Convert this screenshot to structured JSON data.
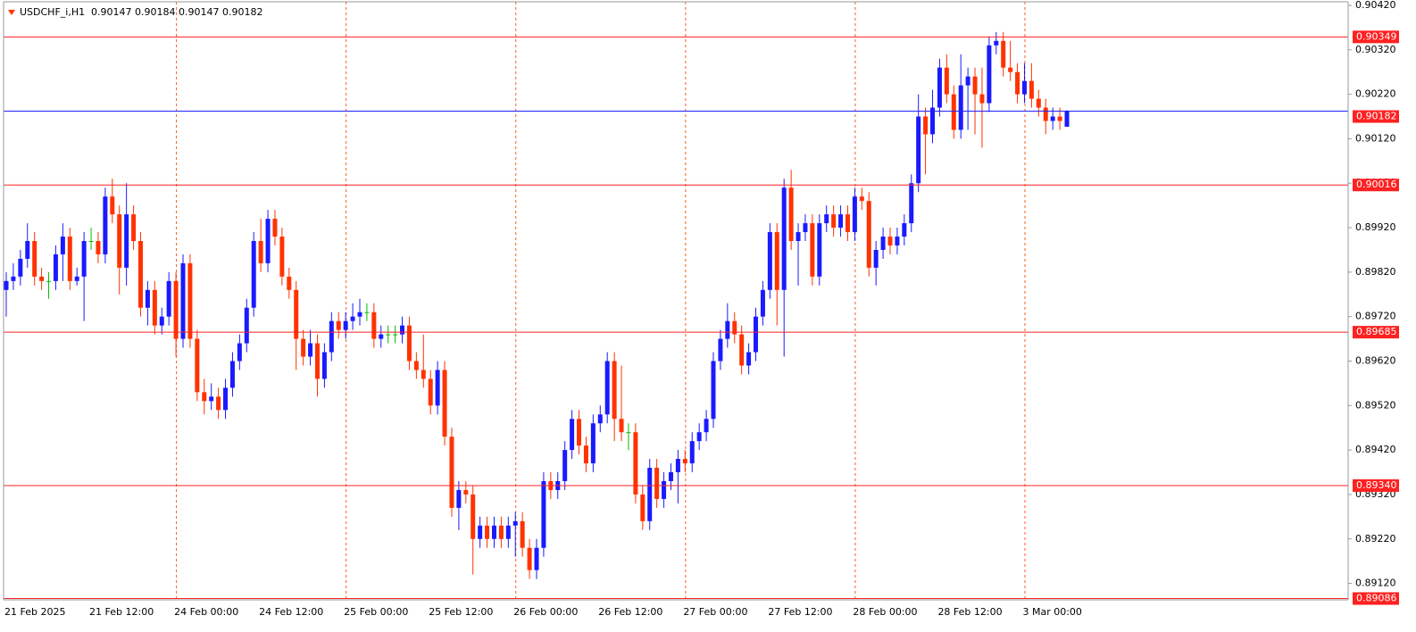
{
  "chart_data": {
    "type": "candlestick",
    "title": "USDCHF_i,H1",
    "categories": [
      "21 Feb 2025",
      null,
      null,
      null,
      null,
      null,
      null,
      null,
      null,
      null,
      null,
      null,
      "21 Feb 12:00",
      null,
      null,
      null,
      null,
      null,
      null,
      null,
      null,
      null,
      null,
      null,
      "24 Feb 00:00",
      null,
      null,
      null,
      null,
      null,
      null,
      null,
      null,
      null,
      null,
      null,
      "24 Feb 12:00",
      null,
      null,
      null,
      null,
      null,
      null,
      null,
      null,
      null,
      null,
      null,
      "25 Feb 00:00",
      null,
      null,
      null,
      null,
      null,
      null,
      null,
      null,
      null,
      null,
      null,
      "25 Feb 12:00",
      null,
      null,
      null,
      null,
      null,
      null,
      null,
      null,
      null,
      null,
      null,
      "26 Feb 00:00",
      null,
      null,
      null,
      null,
      null,
      null,
      null,
      null,
      null,
      null,
      null,
      "26 Feb 12:00",
      null,
      null,
      null,
      null,
      null,
      null,
      null,
      null,
      null,
      null,
      null,
      "27 Feb 00:00",
      null,
      null,
      null,
      null,
      null,
      null,
      null,
      null,
      null,
      null,
      null,
      "27 Feb 12:00",
      null,
      null,
      null,
      null,
      null,
      null,
      null,
      null,
      null,
      null,
      null,
      "28 Feb 00:00",
      null,
      null,
      null,
      null,
      null,
      null,
      null,
      null,
      null,
      null,
      null,
      "28 Feb 12:00",
      null,
      null,
      null,
      null,
      null,
      null,
      null,
      null,
      null,
      null,
      null,
      "3 Mar 00:00",
      null,
      null,
      null,
      null,
      null,
      null
    ],
    "open": [
      0.8978,
      0.898,
      0.8981,
      0.8985,
      0.8989,
      0.8981,
      0.898,
      0.898,
      0.8986,
      0.899,
      0.898,
      0.8981,
      0.8989,
      0.8989,
      0.8986,
      0.8999,
      0.8995,
      0.8983,
      0.8995,
      0.8989,
      0.8974,
      0.8978,
      0.897,
      0.8972,
      0.898,
      0.8967,
      0.8984,
      0.8967,
      0.8955,
      0.8953,
      0.8954,
      0.8951,
      0.8956,
      0.8962,
      0.8966,
      0.8974,
      0.8989,
      0.8984,
      0.8994,
      0.899,
      0.8981,
      0.8978,
      0.8967,
      0.8963,
      0.8966,
      0.8958,
      0.8964,
      0.8971,
      0.8969,
      0.8971,
      0.8972,
      0.8973,
      0.8973,
      0.8967,
      0.8968,
      0.8968,
      0.8968,
      0.897,
      0.8962,
      0.896,
      0.8958,
      0.8952,
      0.896,
      0.8945,
      0.8929,
      0.8933,
      0.8932,
      0.8922,
      0.8925,
      0.8922,
      0.8925,
      0.8922,
      0.8925,
      0.8926,
      0.892,
      0.8915,
      0.892,
      0.8935,
      0.8933,
      0.8935,
      0.8942,
      0.8949,
      0.8943,
      0.8939,
      0.8948,
      0.895,
      0.8962,
      0.8949,
      0.8946,
      0.8946,
      0.8932,
      0.8926,
      0.8938,
      0.8931,
      0.8935,
      0.8937,
      0.894,
      0.8939,
      0.8944,
      0.8946,
      0.8949,
      0.8962,
      0.8967,
      0.8971,
      0.8968,
      0.8961,
      0.8964,
      0.8972,
      0.8978,
      0.8991,
      0.8978,
      0.9001,
      0.8989,
      0.8991,
      0.8993,
      0.8981,
      0.8993,
      0.8995,
      0.8992,
      0.8995,
      0.8991,
      0.8999,
      0.8998,
      0.8983,
      0.8987,
      0.899,
      0.8988,
      0.899,
      0.8993,
      0.9002,
      0.9017,
      0.9013,
      0.9019,
      0.9028,
      0.9022,
      0.9014,
      0.9024,
      0.9026,
      0.9022,
      0.902,
      0.9033,
      0.9034,
      0.9028,
      0.9027,
      0.9022,
      0.9025,
      0.9021,
      0.9019,
      0.9016,
      0.9017,
      0.90147
    ],
    "high": [
      0.8982,
      0.8984,
      0.8987,
      0.8993,
      0.8991,
      0.8983,
      0.8982,
      0.8988,
      0.8993,
      0.8992,
      0.8983,
      0.8991,
      0.8992,
      0.8991,
      0.9001,
      0.9003,
      0.8997,
      0.9002,
      0.8997,
      0.8991,
      0.898,
      0.898,
      0.8974,
      0.8982,
      0.8982,
      0.8986,
      0.8986,
      0.8969,
      0.8958,
      0.8957,
      0.8956,
      0.8958,
      0.8964,
      0.8968,
      0.8976,
      0.8991,
      0.8994,
      0.8996,
      0.8996,
      0.8992,
      0.8983,
      0.898,
      0.8969,
      0.8969,
      0.8968,
      0.8966,
      0.8973,
      0.8973,
      0.8973,
      0.8975,
      0.8976,
      0.8975,
      0.8975,
      0.897,
      0.897,
      0.897,
      0.8972,
      0.8972,
      0.8964,
      0.8968,
      0.896,
      0.8962,
      0.8962,
      0.8947,
      0.8935,
      0.8935,
      0.8934,
      0.8927,
      0.8927,
      0.8927,
      0.8927,
      0.8927,
      0.8928,
      0.8928,
      0.8922,
      0.8922,
      0.8937,
      0.8937,
      0.8937,
      0.8944,
      0.8951,
      0.8951,
      0.8945,
      0.895,
      0.8952,
      0.8964,
      0.8964,
      0.8961,
      0.8948,
      0.8948,
      0.8934,
      0.894,
      0.894,
      0.8937,
      0.8939,
      0.8942,
      0.8942,
      0.8946,
      0.8948,
      0.8951,
      0.8964,
      0.8969,
      0.8975,
      0.8973,
      0.897,
      0.8966,
      0.8974,
      0.898,
      0.8993,
      0.8993,
      0.9003,
      0.9005,
      0.8993,
      0.8995,
      0.8995,
      0.8995,
      0.8997,
      0.8997,
      0.8997,
      0.8997,
      0.9001,
      0.9001,
      0.9,
      0.8989,
      0.8992,
      0.8992,
      0.8992,
      0.8995,
      0.9004,
      0.9022,
      0.9019,
      0.9023,
      0.903,
      0.9031,
      0.9024,
      0.9031,
      0.9028,
      0.9028,
      0.9028,
      0.9035,
      0.9036,
      0.9036,
      0.9034,
      0.9029,
      0.9029,
      0.9029,
      0.9023,
      0.9021,
      0.9019,
      0.9019,
      0.90184
    ],
    "low": [
      0.8972,
      0.8978,
      0.8979,
      0.8983,
      0.8979,
      0.8978,
      0.8976,
      0.8978,
      0.898,
      0.8978,
      0.8979,
      0.8971,
      0.8987,
      0.8984,
      0.8984,
      0.8993,
      0.8977,
      0.8979,
      0.8987,
      0.8972,
      0.897,
      0.8968,
      0.8968,
      0.897,
      0.8963,
      0.8965,
      0.8965,
      0.8953,
      0.895,
      0.8951,
      0.8949,
      0.8949,
      0.8954,
      0.896,
      0.8964,
      0.8972,
      0.8982,
      0.8982,
      0.8988,
      0.8979,
      0.8976,
      0.896,
      0.8961,
      0.8961,
      0.8954,
      0.8956,
      0.8962,
      0.8967,
      0.8967,
      0.8969,
      0.897,
      0.8971,
      0.8965,
      0.8965,
      0.8966,
      0.8966,
      0.8966,
      0.896,
      0.8958,
      0.8956,
      0.895,
      0.895,
      0.8943,
      0.8927,
      0.8924,
      0.893,
      0.8914,
      0.892,
      0.892,
      0.892,
      0.892,
      0.892,
      0.8918,
      0.8918,
      0.8913,
      0.8913,
      0.8918,
      0.8931,
      0.8931,
      0.8933,
      0.894,
      0.8941,
      0.8937,
      0.8937,
      0.8946,
      0.8948,
      0.8944,
      0.8944,
      0.8942,
      0.893,
      0.8924,
      0.8924,
      0.8929,
      0.8929,
      0.8933,
      0.893,
      0.8937,
      0.8937,
      0.8942,
      0.8944,
      0.8947,
      0.896,
      0.8965,
      0.8966,
      0.8959,
      0.8959,
      0.8962,
      0.897,
      0.8976,
      0.897,
      0.8963,
      0.8987,
      0.8979,
      0.8989,
      0.8979,
      0.8979,
      0.8991,
      0.899,
      0.899,
      0.8989,
      0.8989,
      0.8996,
      0.8981,
      0.8979,
      0.8985,
      0.8986,
      0.8986,
      0.8988,
      0.8991,
      0.9,
      0.9004,
      0.9011,
      0.9017,
      0.902,
      0.9012,
      0.9012,
      0.9014,
      0.9013,
      0.901,
      0.9018,
      0.9031,
      0.9026,
      0.9025,
      0.902,
      0.902,
      0.9019,
      0.9017,
      0.9013,
      0.9014,
      0.9014,
      0.90147
    ],
    "close": [
      0.898,
      0.8981,
      0.8985,
      0.8989,
      0.8981,
      0.898,
      0.898,
      0.8986,
      0.899,
      0.898,
      0.8981,
      0.8989,
      0.8989,
      0.8986,
      0.8999,
      0.8995,
      0.8983,
      0.8995,
      0.8989,
      0.8974,
      0.8978,
      0.897,
      0.8972,
      0.898,
      0.8967,
      0.8984,
      0.8967,
      0.8955,
      0.8953,
      0.8954,
      0.8951,
      0.8956,
      0.8962,
      0.8966,
      0.8974,
      0.8989,
      0.8984,
      0.8994,
      0.899,
      0.8981,
      0.8978,
      0.8967,
      0.8963,
      0.8966,
      0.8958,
      0.8964,
      0.8971,
      0.8969,
      0.8971,
      0.8972,
      0.8973,
      0.8973,
      0.8967,
      0.8968,
      0.8968,
      0.8968,
      0.897,
      0.8962,
      0.896,
      0.8958,
      0.8952,
      0.896,
      0.8945,
      0.8929,
      0.8933,
      0.8932,
      0.8922,
      0.8925,
      0.8922,
      0.8925,
      0.8922,
      0.8925,
      0.8926,
      0.892,
      0.8915,
      0.892,
      0.8935,
      0.8933,
      0.8935,
      0.8942,
      0.8949,
      0.8943,
      0.8939,
      0.8948,
      0.895,
      0.8962,
      0.8949,
      0.8946,
      0.8946,
      0.8932,
      0.8926,
      0.8938,
      0.8931,
      0.8935,
      0.8937,
      0.894,
      0.8939,
      0.8944,
      0.8946,
      0.8949,
      0.8962,
      0.8967,
      0.8971,
      0.8968,
      0.8961,
      0.8964,
      0.8972,
      0.8978,
      0.8991,
      0.8978,
      0.9001,
      0.8989,
      0.8991,
      0.8993,
      0.8981,
      0.8993,
      0.8995,
      0.8992,
      0.8995,
      0.8991,
      0.8999,
      0.8998,
      0.8983,
      0.8987,
      0.899,
      0.8988,
      0.899,
      0.8993,
      0.9002,
      0.9017,
      0.9013,
      0.9019,
      0.9028,
      0.9022,
      0.9014,
      0.9024,
      0.9026,
      0.9022,
      0.902,
      0.9033,
      0.9034,
      0.9028,
      0.9027,
      0.9022,
      0.9025,
      0.9021,
      0.9019,
      0.9016,
      0.9017,
      0.9016,
      0.90182
    ],
    "up_color": "#1a1aff",
    "down_color": "#ff3300",
    "doji_color": "#00c000",
    "ylim": [
      0.89083,
      0.90428
    ],
    "yticks": [
      {
        "value": 0.9042,
        "label": "0.90420"
      },
      {
        "value": 0.9032,
        "label": "0.90320"
      },
      {
        "value": 0.9022,
        "label": "0.90220"
      },
      {
        "value": 0.9012,
        "label": "0.90120"
      },
      {
        "value": 0.9002,
        "label": "0.90020"
      },
      {
        "value": 0.8992,
        "label": "0.89920"
      },
      {
        "value": 0.8982,
        "label": "0.89820"
      },
      {
        "value": 0.8972,
        "label": "0.89720"
      },
      {
        "value": 0.8962,
        "label": "0.89620"
      },
      {
        "value": 0.8952,
        "label": "0.89520"
      },
      {
        "value": 0.8942,
        "label": "0.89420"
      },
      {
        "value": 0.8932,
        "label": "0.89320"
      },
      {
        "value": 0.8922,
        "label": "0.89220"
      },
      {
        "value": 0.8912,
        "label": "0.89120"
      }
    ],
    "levels": [
      0.90349,
      0.90016,
      0.89685,
      {
        "value": 0.8934,
        "label": "0.89340"
      },
      0.89086
    ],
    "level_color": "#ff2020",
    "bid_line_color": "#2020ff",
    "grid_color": "#ff5a1f"
  }
}
